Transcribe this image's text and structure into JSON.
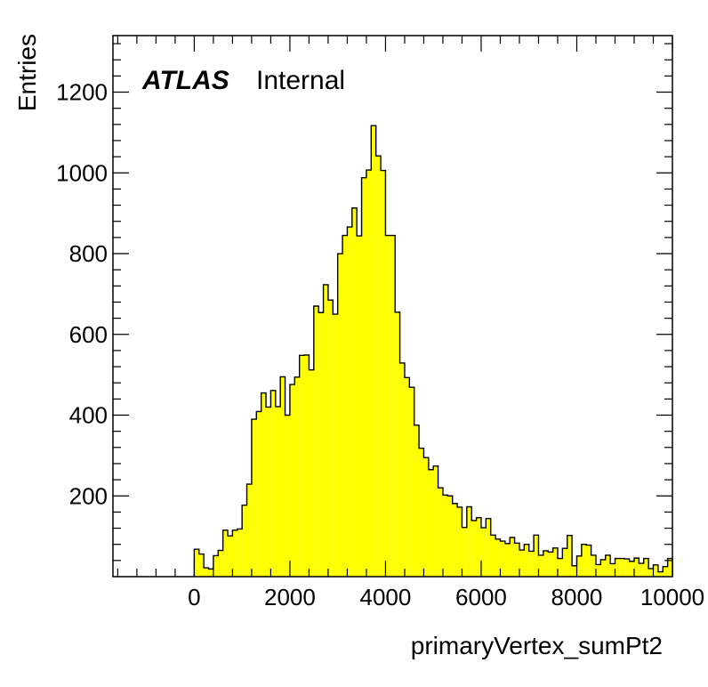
{
  "chart_data": {
    "type": "histogram",
    "label_main": "ATLAS",
    "label_status": "Internal",
    "xlabel": "primaryVertex_sumPt2",
    "ylabel": "Entries",
    "xlim": [
      -1700,
      10000
    ],
    "ylim": [
      0,
      1340
    ],
    "x_ticks": [
      0,
      2000,
      4000,
      6000,
      8000,
      10000
    ],
    "y_ticks": [
      200,
      400,
      600,
      800,
      1000,
      1200
    ],
    "bin_width": 100,
    "bin_start": 0,
    "fill_color": "#ffff00",
    "line_color": "#000000",
    "values": [
      68,
      56,
      22,
      19,
      52,
      65,
      115,
      101,
      115,
      118,
      177,
      229,
      390,
      409,
      455,
      420,
      461,
      421,
      495,
      400,
      476,
      494,
      548,
      549,
      512,
      670,
      654,
      723,
      685,
      650,
      800,
      845,
      866,
      913,
      844,
      988,
      1007,
      1117,
      1042,
      1006,
      845,
      845,
      655,
      529,
      493,
      469,
      375,
      318,
      295,
      265,
      274,
      220,
      202,
      200,
      181,
      172,
      122,
      173,
      139,
      146,
      121,
      144,
      103,
      93,
      88,
      82,
      97,
      83,
      66,
      80,
      63,
      103,
      53,
      64,
      61,
      71,
      45,
      70,
      102,
      27,
      51,
      80,
      78,
      53,
      30,
      42,
      53,
      32,
      45,
      45,
      44,
      38,
      46,
      33,
      45,
      20,
      29,
      12,
      25,
      45
    ]
  }
}
